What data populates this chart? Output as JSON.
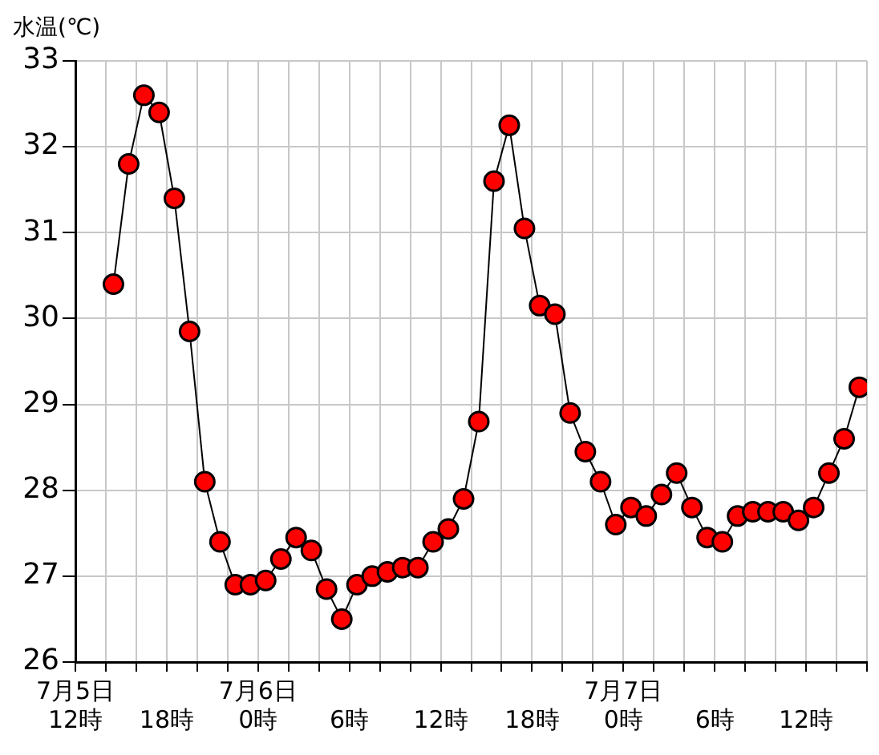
{
  "chart_data": {
    "type": "line",
    "ylabel": "水温(℃)",
    "xlim": [
      "--07-05T12:00",
      "--07-07T16:00"
    ],
    "ylim": [
      26,
      33
    ],
    "xticks": [
      {
        "value": "--07-05T12:00",
        "label": "7月5日\n12時"
      },
      {
        "value": "--07-05T14:00",
        "label": null
      },
      {
        "value": "--07-05T16:00",
        "label": null
      },
      {
        "value": "--07-05T18:00",
        "label": "18時"
      },
      {
        "value": "--07-05T20:00",
        "label": null
      },
      {
        "value": "--07-05T22:00",
        "label": null
      },
      {
        "value": "--07-06T00:00",
        "label": "7月6日\n0時"
      },
      {
        "value": "--07-06T02:00",
        "label": null
      },
      {
        "value": "--07-06T04:00",
        "label": null
      },
      {
        "value": "--07-06T06:00",
        "label": "6時"
      },
      {
        "value": "--07-06T08:00",
        "label": null
      },
      {
        "value": "--07-06T10:00",
        "label": null
      },
      {
        "value": "--07-06T12:00",
        "label": "12時"
      },
      {
        "value": "--07-06T14:00",
        "label": null
      },
      {
        "value": "--07-06T16:00",
        "label": null
      },
      {
        "value": "--07-06T18:00",
        "label": "18時"
      },
      {
        "value": "--07-06T20:00",
        "label": null
      },
      {
        "value": "--07-06T22:00",
        "label": null
      },
      {
        "value": "--07-07T00:00",
        "label": "7月7日\n0時"
      },
      {
        "value": "--07-07T02:00",
        "label": null
      },
      {
        "value": "--07-07T04:00",
        "label": null
      },
      {
        "value": "--07-07T06:00",
        "label": "6時"
      },
      {
        "value": "--07-07T08:00",
        "label": null
      },
      {
        "value": "--07-07T10:00",
        "label": null
      },
      {
        "value": "--07-07T12:00",
        "label": "12時"
      },
      {
        "value": "--07-07T14:00",
        "label": null
      },
      {
        "value": "--07-07T16:00",
        "label": null
      }
    ],
    "yticks": [
      26,
      27,
      28,
      29,
      30,
      31,
      32,
      33
    ],
    "grid": true,
    "marker": "circle",
    "line_style": "solid",
    "series": [
      {
        "color": "#ff0000",
        "x": [
          "--07-05T14:30",
          "--07-05T15:30",
          "--07-05T16:30",
          "--07-05T17:30",
          "--07-05T18:30",
          "--07-05T19:30",
          "--07-05T20:30",
          "--07-05T21:30",
          "--07-05T22:30",
          "--07-05T23:30",
          "--07-06T00:30",
          "--07-06T01:30",
          "--07-06T02:30",
          "--07-06T03:30",
          "--07-06T04:30",
          "--07-06T05:30",
          "--07-06T06:30",
          "--07-06T07:30",
          "--07-06T08:30",
          "--07-06T09:30",
          "--07-06T10:30",
          "--07-06T11:30",
          "--07-06T12:30",
          "--07-06T13:30",
          "--07-06T14:30",
          "--07-06T15:30",
          "--07-06T16:30",
          "--07-06T17:30",
          "--07-06T18:30",
          "--07-06T19:30",
          "--07-06T20:30",
          "--07-06T21:30",
          "--07-06T22:30",
          "--07-06T23:30",
          "--07-07T00:30",
          "--07-07T01:30",
          "--07-07T02:30",
          "--07-07T03:30",
          "--07-07T04:30",
          "--07-07T05:30",
          "--07-07T06:30",
          "--07-07T07:30",
          "--07-07T08:30",
          "--07-07T09:30",
          "--07-07T10:30",
          "--07-07T11:30",
          "--07-07T12:30",
          "--07-07T13:30",
          "--07-07T14:30",
          "--07-07T15:30"
        ],
        "values": [
          30.4,
          31.8,
          32.6,
          32.4,
          31.4,
          29.85,
          28.1,
          27.4,
          26.9,
          26.9,
          26.95,
          27.2,
          27.45,
          27.3,
          26.85,
          26.5,
          26.9,
          27.0,
          27.05,
          27.1,
          27.1,
          27.4,
          27.55,
          27.9,
          28.8,
          31.6,
          32.25,
          31.05,
          30.15,
          30.05,
          28.9,
          28.45,
          28.1,
          27.6,
          27.8,
          27.7,
          27.95,
          28.2,
          27.8,
          27.45,
          27.4,
          27.7,
          27.75,
          27.75,
          27.75,
          27.65,
          27.8,
          28.2,
          28.6,
          29.2
        ]
      }
    ]
  }
}
